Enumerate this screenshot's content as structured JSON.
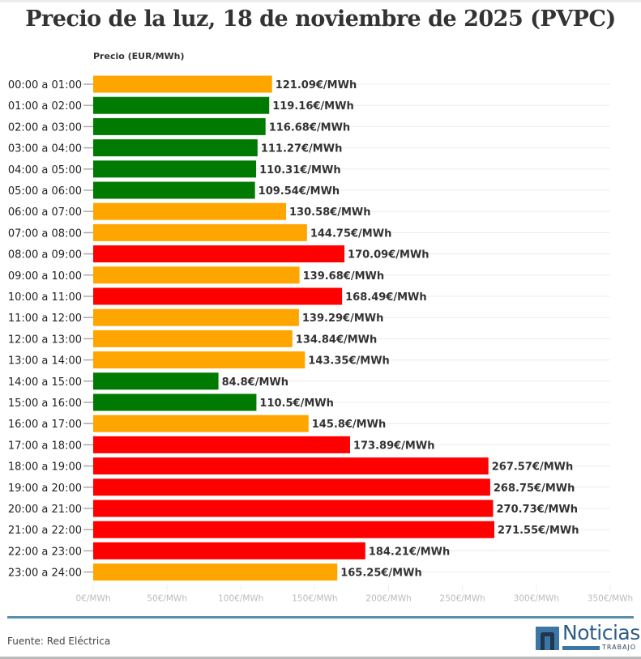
{
  "chart_data": {
    "type": "bar",
    "orientation": "horizontal",
    "title": "Precio de la luz, 18 de noviembre de 2025 (PVPC)",
    "xlabel": "",
    "ylabel": "Precio (EUR/MWh)",
    "xlim": [
      0,
      350
    ],
    "xticks": [
      0,
      50,
      100,
      150,
      200,
      250,
      300,
      350
    ],
    "xtick_labels": [
      "0€/MWh",
      "50€/MWh",
      "100€/MWh",
      "150€/MWh",
      "200€/MWh",
      "250€/MWh",
      "300€/MWh",
      "350€/MWh"
    ],
    "value_suffix": "€/MWh",
    "grid": true,
    "legend": "none",
    "categories": [
      "00:00 a 01:00",
      "01:00 a 02:00",
      "02:00 a 03:00",
      "03:00 a 04:00",
      "04:00 a 05:00",
      "05:00 a 06:00",
      "06:00 a 07:00",
      "07:00 a 08:00",
      "08:00 a 09:00",
      "09:00 a 10:00",
      "10:00 a 11:00",
      "11:00 a 12:00",
      "12:00 a 13:00",
      "13:00 a 14:00",
      "14:00 a 15:00",
      "15:00 a 16:00",
      "16:00 a 17:00",
      "17:00 a 18:00",
      "18:00 a 19:00",
      "19:00 a 20:00",
      "20:00 a 21:00",
      "21:00 a 22:00",
      "22:00 a 23:00",
      "23:00 a 24:00"
    ],
    "values": [
      121.09,
      119.16,
      116.68,
      111.27,
      110.31,
      109.54,
      130.58,
      144.75,
      170.09,
      139.68,
      168.49,
      139.29,
      134.84,
      143.35,
      84.8,
      110.5,
      145.8,
      173.89,
      267.57,
      268.75,
      270.73,
      271.55,
      184.21,
      165.25
    ],
    "value_labels": [
      "121.09€/MWh",
      "119.16€/MWh",
      "116.68€/MWh",
      "111.27€/MWh",
      "110.31€/MWh",
      "109.54€/MWh",
      "130.58€/MWh",
      "144.75€/MWh",
      "170.09€/MWh",
      "139.68€/MWh",
      "168.49€/MWh",
      "139.29€/MWh",
      "134.84€/MWh",
      "143.35€/MWh",
      "84.8€/MWh",
      "110.5€/MWh",
      "145.8€/MWh",
      "173.89€/MWh",
      "267.57€/MWh",
      "268.75€/MWh",
      "270.73€/MWh",
      "271.55€/MWh",
      "184.21€/MWh",
      "165.25€/MWh"
    ],
    "price_levels": [
      "medio",
      "bajo",
      "bajo",
      "bajo",
      "bajo",
      "bajo",
      "medio",
      "medio",
      "alto",
      "medio",
      "alto",
      "medio",
      "medio",
      "medio",
      "bajo",
      "bajo",
      "medio",
      "alto",
      "alto",
      "alto",
      "alto",
      "alto",
      "alto",
      "medio"
    ],
    "level_colors": {
      "bajo": "#007a00",
      "medio": "#ffa500",
      "alto": "#ff0000"
    }
  },
  "footer": {
    "source": "Fuente: Red Eléctrica",
    "logo_word": "Noticias",
    "logo_sub": "TRABAJO"
  },
  "colors": {
    "divider": "#5b8fae",
    "grid": "#ececec"
  }
}
